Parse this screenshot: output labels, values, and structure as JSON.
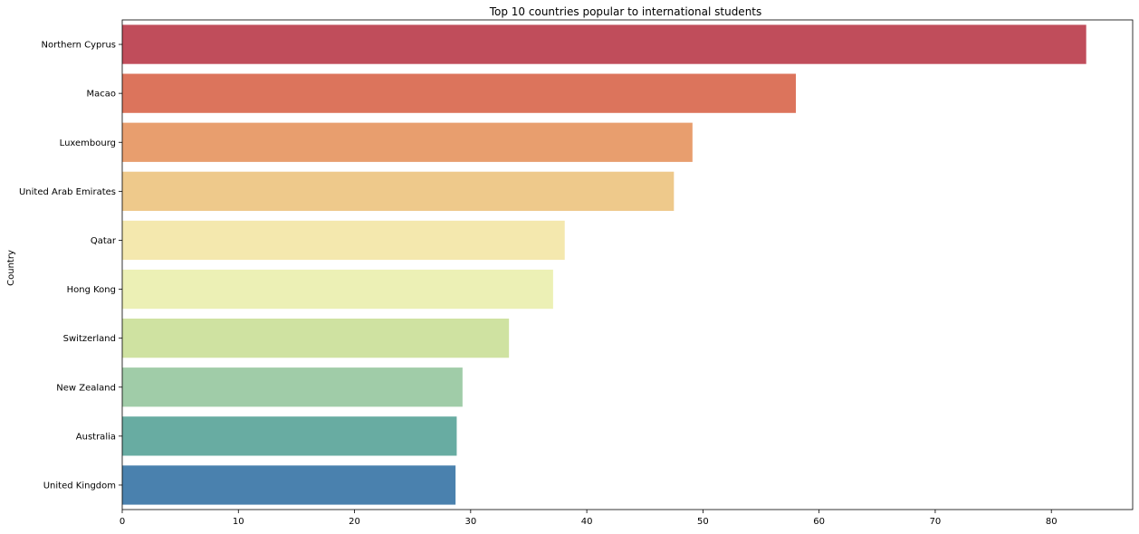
{
  "chart_data": {
    "type": "bar",
    "orientation": "horizontal",
    "title": "Top 10 countries popular to international students",
    "xlabel": "",
    "ylabel": "Country",
    "xlim": [
      0,
      87
    ],
    "xticks": [
      "0",
      "10",
      "20",
      "30",
      "40",
      "50",
      "60",
      "70",
      "80"
    ],
    "grid": false,
    "legend": "none",
    "categories": [
      "Northern Cyprus",
      "Macao",
      "Luxembourg",
      "United Arab Emirates",
      "Qatar",
      "Hong Kong",
      "Switzerland",
      "New Zealand",
      "Australia",
      "United Kingdom"
    ],
    "values": [
      83.0,
      58.0,
      49.1,
      47.5,
      38.1,
      37.1,
      33.3,
      29.3,
      28.8,
      28.7
    ],
    "colors": [
      "#c04d5b",
      "#dc745c",
      "#e89e6e",
      "#eec98b",
      "#f4e8ae",
      "#ecf0b5",
      "#cfe2a1",
      "#a0cca8",
      "#68aca2",
      "#4a81ae"
    ]
  }
}
